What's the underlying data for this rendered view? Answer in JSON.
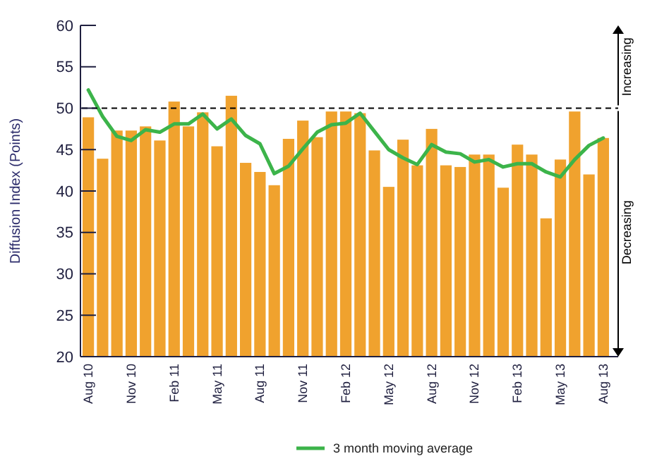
{
  "chart_data": {
    "type": "bar",
    "ylabel": "Diffusion Index (Points)",
    "categories": [
      "Aug 10",
      null,
      null,
      "Nov 10",
      null,
      null,
      "Feb 11",
      null,
      null,
      "May 11",
      null,
      null,
      "Aug 11",
      null,
      null,
      "Nov 11",
      null,
      null,
      "Feb 12",
      null,
      null,
      "May 12",
      null,
      null,
      "Aug 12",
      null,
      null,
      "Nov 12",
      null,
      null,
      "Feb 13",
      null,
      null,
      "May 13",
      null,
      null,
      "Aug 13"
    ],
    "series": [
      {
        "color": "#f0a22e",
        "values": [
          48.9,
          43.9,
          47.3,
          47.3,
          47.8,
          46.1,
          50.8,
          47.8,
          49.5,
          45.4,
          51.5,
          43.4,
          42.3,
          40.7,
          46.3,
          48.5,
          46.5,
          49.6,
          49.6,
          49.4,
          44.9,
          40.5,
          46.2,
          43.1,
          47.5,
          43.1,
          42.9,
          44.4,
          44.4,
          40.4,
          45.6,
          44.4,
          36.7,
          43.8,
          49.6,
          42.0,
          46.4
        ]
      },
      {
        "type": "line",
        "name": "3 month moving average",
        "color": "#3cb44a",
        "values": [
          52.2,
          49.0,
          46.6,
          46.1,
          47.4,
          47.1,
          48.1,
          48.1,
          49.3,
          47.5,
          48.7,
          46.7,
          45.7,
          42.1,
          43.0,
          45.1,
          47.1,
          48.0,
          48.2,
          49.4,
          47.2,
          45.0,
          44.0,
          43.2,
          45.6,
          44.7,
          44.5,
          43.5,
          43.8,
          42.9,
          43.3,
          43.3,
          42.3,
          41.7,
          43.8,
          45.5,
          46.4
        ]
      }
    ],
    "ylim": [
      20,
      60
    ],
    "yticks": [
      20,
      25,
      30,
      35,
      40,
      45,
      50,
      55,
      60
    ],
    "grid": false,
    "legend": "bottom",
    "ref_lines": [
      {
        "axis": "y",
        "value": 50,
        "line_style": "dashed",
        "color": "#000000"
      }
    ],
    "annotations": [
      "Increasing",
      "Decreasing"
    ]
  }
}
